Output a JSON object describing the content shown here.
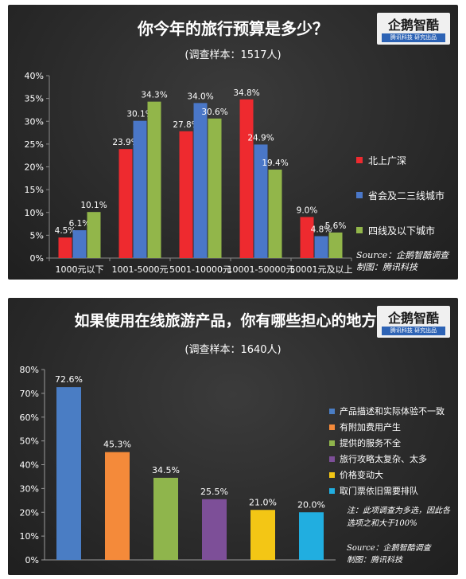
{
  "panel1": {
    "title": "你今年的旅行预算是多少？",
    "subtitle": "(调查样本：1517人)",
    "logo": {
      "name": "企鹅智酷",
      "tagline": "腾讯科技  研究出品"
    },
    "source_line1": "Source：企鹅智酷调查",
    "source_line2": "制图：腾讯科技",
    "chart_data": {
      "type": "bar",
      "categories": [
        "1000元以下",
        "1001-5000元",
        "5001-10000元",
        "10001-50000元",
        "50001元及以上"
      ],
      "series": [
        {
          "name": "北上广深",
          "color": "#ee2a2f",
          "values": [
            4.5,
            23.9,
            27.8,
            34.8,
            9.0
          ],
          "labels": [
            "4.5%",
            "23.9%",
            "27.8%",
            "34.8%",
            "9.0%"
          ]
        },
        {
          "name": "省会及二三线城市",
          "color": "#4a77c8",
          "values": [
            6.1,
            30.1,
            34.0,
            24.9,
            4.8
          ],
          "labels": [
            "6.1%",
            "30.1%",
            "34.0%",
            "24.9%",
            "4.8%"
          ]
        },
        {
          "name": "四线及以下城市",
          "color": "#92b64a",
          "values": [
            10.1,
            34.3,
            30.6,
            19.4,
            5.6
          ],
          "labels": [
            "10.1%",
            "34.3%",
            "30.6%",
            "19.4%",
            "5.6%"
          ]
        }
      ],
      "ylim": [
        0,
        40
      ],
      "yticks": [
        "0%",
        "5%",
        "10%",
        "15%",
        "20%",
        "25%",
        "30%",
        "35%",
        "40%"
      ],
      "grid": false,
      "legend_position": "right"
    }
  },
  "panel2": {
    "title": "如果使用在线旅游产品，你有哪些担心的地方？",
    "subtitle": "(调查样本：1640人)",
    "logo": {
      "name": "企鹅智酷",
      "tagline": "腾讯科技  研究出品"
    },
    "note": "注：此项调查为多选，因此各选项之和大于100%",
    "source_line1": "Source：企鹅智酷调查",
    "source_line2": "制图：腾讯科技",
    "chart_data": {
      "type": "bar",
      "categories": [
        "产品描述和实际体验不一致",
        "有附加费用产生",
        "提供的服务不全",
        "旅行攻略太复杂、太多",
        "价格变动大",
        "取门票依旧需要排队"
      ],
      "values": [
        72.6,
        45.3,
        34.5,
        25.5,
        21.0,
        20.0
      ],
      "labels": [
        "72.6%",
        "45.3%",
        "34.5%",
        "25.5%",
        "21.0%",
        "20.0%"
      ],
      "colors": [
        "#4a7dc4",
        "#f48a3a",
        "#8fb54c",
        "#7d4f98",
        "#f3c615",
        "#21aee0"
      ],
      "ylim": [
        0,
        80
      ],
      "yticks": [
        "0%",
        "10%",
        "20%",
        "30%",
        "40%",
        "50%",
        "60%",
        "70%",
        "80%"
      ],
      "grid": false,
      "legend_position": "right"
    }
  }
}
